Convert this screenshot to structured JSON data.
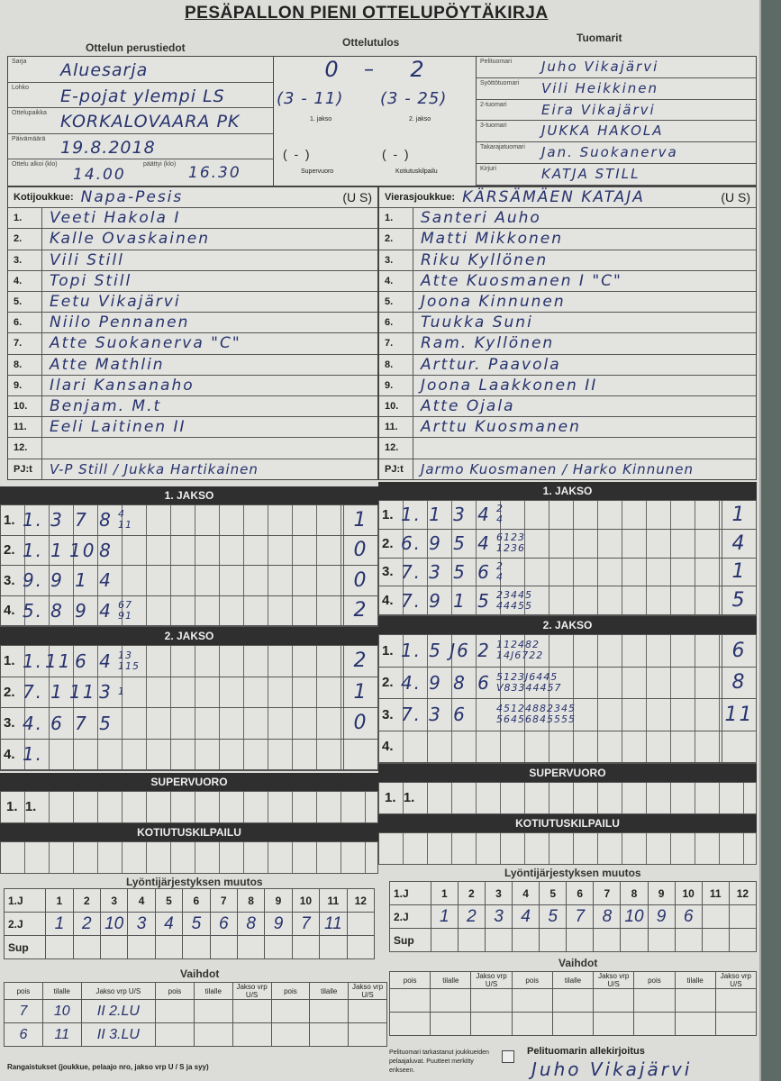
{
  "title": "PESÄPALLON PIENI OTTELUPÖYTÄKIRJA",
  "basic": {
    "heading": "Ottelun perustiedot",
    "fields": [
      {
        "label": "Sarja",
        "value": "Aluesarja"
      },
      {
        "label": "Lohko",
        "value": "E-pojat ylempi LS"
      },
      {
        "label": "Ottelupaikka",
        "value": "KORKALOVAARA PK"
      },
      {
        "label": "Päivämäärä",
        "value": "19.8.2018"
      }
    ],
    "start_label": "Ottelu alkoi (klo)",
    "start": "14.00",
    "end_label": "päättyi (klo)",
    "end": "16.30"
  },
  "result": {
    "heading": "Ottelutulos",
    "home": "0",
    "away": "2",
    "jakso1": "(3 - 11)",
    "jakso2": "(3 - 25)",
    "jakso1_label": "1. jakso",
    "jakso2_label": "2. jakso",
    "super": "(  -  )",
    "kotiutus": "(  -  )",
    "super_label": "Supervuoro",
    "kotiutus_label": "Kotiutuskilpailu"
  },
  "judges": {
    "heading": "Tuomarit",
    "items": [
      {
        "label": "Pelituomari",
        "value": "Juho Vikajärvi"
      },
      {
        "label": "Syöttötuomari",
        "value": "Vili Heikkinen"
      },
      {
        "label": "2-tuomari",
        "value": "Eira Vikajärvi"
      },
      {
        "label": "3-tuomari",
        "value": "JUKKA HAKOLA"
      },
      {
        "label": "Takarajatuomari",
        "value": "Jan. Suokanerva"
      },
      {
        "label": "Kirjuri",
        "value": "KATJA STILL"
      }
    ]
  },
  "home": {
    "label": "Kotijoukkue:",
    "name": "Napa-Pesis",
    "us": "(U S)",
    "pj_label": "PJ:t",
    "pj": "V-P Still / Jukka Hartikainen",
    "players": [
      "Veeti Hakola  I",
      "Kalle Ovaskainen",
      "Vili Still",
      "Topi Still",
      "Eetu Vikajärvi",
      "Niilo Pennanen",
      "Atte Suokanerva \"C\"",
      "Atte Mathlin",
      "Ilari Kansanaho",
      "Benjam. M.t",
      "Eeli Laitinen  II",
      ""
    ]
  },
  "away": {
    "label": "Vierasjoukkue:",
    "name": "KÄRSÄMÄEN KATAJA",
    "us": "(U S)",
    "pj_label": "PJ:t",
    "pj": "Jarmo Kuosmanen / Harko Kinnunen",
    "players": [
      "Santeri Auho",
      "Matti Mikkonen",
      "Riku Kyllönen",
      "Atte Kuosmanen I \"C\"",
      "Joona Kinnunen",
      "Tuukka Suni",
      "Ram. Kyllönen",
      "Arttur. Paavola",
      "Joona Laakkonen  II",
      "Atte Ojala",
      "Arttu Kuosmanen",
      ""
    ]
  },
  "numbers": [
    "1.",
    "2.",
    "3.",
    "4.",
    "5.",
    "6.",
    "7.",
    "8.",
    "9.",
    "10.",
    "11.",
    "12."
  ],
  "bands": {
    "jakso1": "1. JAKSO",
    "jakso2": "2. JAKSO",
    "super": "SUPERVUORO",
    "kotiutus": "KOTIUTUSKILPAILU",
    "lineup": "Lyöntijärjestyksen muutos",
    "subs": "Vaihdot"
  },
  "innings": {
    "home1": [
      {
        "n": "1.",
        "cells": [
          "1.",
          "3",
          "7",
          "8"
        ],
        "extra": "4\n11",
        "score": "1"
      },
      {
        "n": "2.",
        "cells": [
          "1.",
          "1",
          "10",
          "8"
        ],
        "extra": "",
        "score": "0"
      },
      {
        "n": "3.",
        "cells": [
          "9.",
          "9",
          "1",
          "4"
        ],
        "extra": "",
        "score": "0"
      },
      {
        "n": "4.",
        "cells": [
          "5.",
          "8",
          "9",
          "4"
        ],
        "extra": "67\n91",
        "score": "2"
      }
    ],
    "away1": [
      {
        "n": "1.",
        "cells": [
          "1.",
          "1",
          "3",
          "4"
        ],
        "extra": "2\n4",
        "score": "1"
      },
      {
        "n": "2.",
        "cells": [
          "6.",
          "9",
          "5",
          "4"
        ],
        "extra": "6123\n1236",
        "score": "4"
      },
      {
        "n": "3.",
        "cells": [
          "7.",
          "3",
          "5",
          "6"
        ],
        "extra": "2\n4",
        "score": "1"
      },
      {
        "n": "4.",
        "cells": [
          "7.",
          "9",
          "1",
          "5"
        ],
        "extra": "23445\n44455",
        "score": "5"
      }
    ],
    "home2": [
      {
        "n": "1.",
        "cells": [
          "1.",
          "11",
          "6",
          "4"
        ],
        "extra": "13\n115",
        "score": "2"
      },
      {
        "n": "2.",
        "cells": [
          "7.",
          "1",
          "11",
          "3"
        ],
        "extra": "1",
        "score": "1"
      },
      {
        "n": "3.",
        "cells": [
          "4.",
          "6",
          "7",
          "5"
        ],
        "extra": "",
        "score": "0"
      },
      {
        "n": "4.",
        "cells": [
          "1."
        ],
        "extra": "",
        "score": ""
      }
    ],
    "away2": [
      {
        "n": "1.",
        "cells": [
          "1.",
          "5",
          "J6",
          "2"
        ],
        "extra": "112482\n14J6722",
        "score": "6"
      },
      {
        "n": "2.",
        "cells": [
          "4.",
          "9",
          "8",
          "6"
        ],
        "extra": "5123J6445\nV83344457",
        "score": "8"
      },
      {
        "n": "3.",
        "cells": [
          "7.",
          "3",
          "6",
          ""
        ],
        "extra": "45124882345\n56456845555",
        "score": "11"
      },
      {
        "n": "4.",
        "cells": [],
        "extra": "",
        "score": ""
      }
    ]
  },
  "super": {
    "home": "1.  1.",
    "away": "1.  1."
  },
  "lineup": {
    "row_labels": [
      "1.J",
      "2.J",
      "Sup"
    ],
    "cols": [
      "1",
      "2",
      "3",
      "4",
      "5",
      "6",
      "7",
      "8",
      "9",
      "10",
      "11",
      "12"
    ],
    "home_2j": [
      "1",
      "2",
      "10",
      "3",
      "4",
      "5",
      "6",
      "8",
      "9",
      "7",
      "11",
      ""
    ],
    "away_2j": [
      "1",
      "2",
      "3",
      "4",
      "5",
      "7",
      "8",
      "10",
      "9",
      "6",
      "",
      ""
    ]
  },
  "subs": {
    "cols": [
      "pois",
      "tilalle",
      "Jakso vrp U/S"
    ],
    "home": [
      [
        "7",
        "10",
        "II 2.LU"
      ],
      [
        "6",
        "11",
        "II 3.LU"
      ]
    ]
  },
  "penalties_label": "Rangaistukset (joukkue, pelaajo nro, jakso vrp U / S ja syy)",
  "check_label": "Pelituomari tarkastanut joukkueiden pelaajaluvat. Puutteet merkitty erikseen.",
  "signature_label": "Pelituomarin allekirjoitus",
  "signature": "Juho Vikajärvi",
  "colors": {
    "ink": "#27336e",
    "band": "#2f2f2f",
    "paper": "#dcdcd8"
  }
}
